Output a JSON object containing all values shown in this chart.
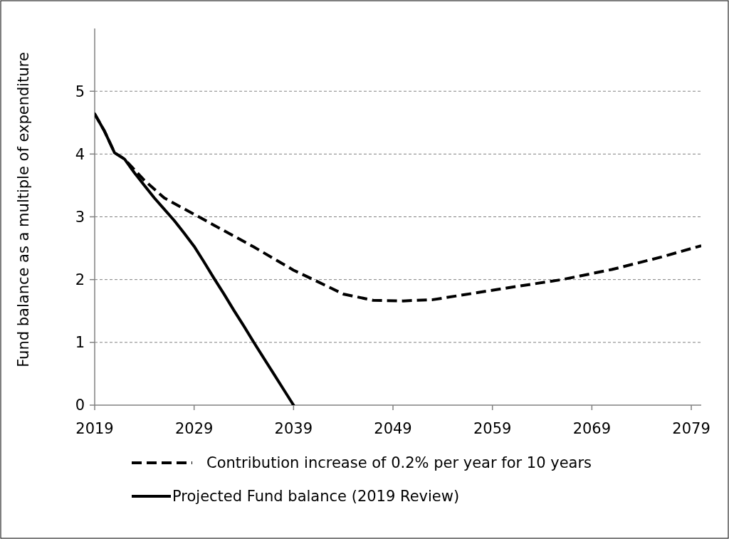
{
  "chart_data": {
    "type": "line",
    "ylabel": "Fund balance as a multiple of expenditure",
    "xlim": [
      2019,
      2080
    ],
    "xticks": [
      2019,
      2029,
      2039,
      2049,
      2059,
      2069,
      2079
    ],
    "ylim": [
      0,
      6
    ],
    "yticks": [
      0,
      1,
      2,
      3,
      4,
      5
    ],
    "grid": "y",
    "legend": "bottom",
    "marker": "none",
    "series": [
      {
        "name": "Contribution increase of 0.2% per year for 10 years",
        "color": "#000000",
        "line_style": "dashed",
        "x": [
          2019,
          2020,
          2021,
          2022,
          2024,
          2026,
          2029,
          2032,
          2035,
          2039,
          2041,
          2044,
          2047,
          2050,
          2053,
          2057,
          2061,
          2066,
          2071,
          2076,
          2080
        ],
        "values": [
          4.64,
          4.36,
          4.02,
          3.92,
          3.58,
          3.3,
          3.04,
          2.78,
          2.52,
          2.15,
          2.0,
          1.77,
          1.67,
          1.66,
          1.68,
          1.78,
          1.88,
          2.0,
          2.16,
          2.36,
          2.54
        ]
      },
      {
        "name": "Projected Fund balance (2019 Review)",
        "color": "#000000",
        "line_style": "solid",
        "x": [
          2019,
          2020,
          2021,
          2022,
          2023,
          2024,
          2025,
          2026,
          2027,
          2028,
          2029,
          2030,
          2031,
          2032,
          2033,
          2034,
          2035,
          2036,
          2037,
          2038,
          2039
        ],
        "values": [
          4.64,
          4.36,
          4.02,
          3.92,
          3.7,
          3.5,
          3.3,
          3.12,
          2.94,
          2.74,
          2.53,
          2.28,
          2.02,
          1.77,
          1.51,
          1.26,
          1.0,
          0.75,
          0.5,
          0.25,
          0
        ]
      }
    ]
  }
}
